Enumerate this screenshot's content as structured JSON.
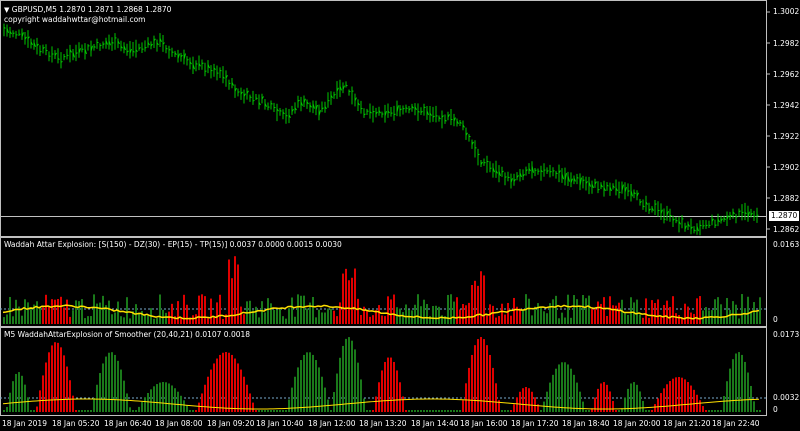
{
  "header": {
    "symbol_line": "GBPUSD,M5  1.2870 1.2871 1.2868 1.2870",
    "copyright": "copyright waddahwttar@hotmail.com"
  },
  "main_axis": {
    "labels": [
      "1.3002",
      "1.2982",
      "1.2962",
      "1.2942",
      "1.2922",
      "1.2902",
      "1.2882",
      "1.2862"
    ],
    "current_price": "1.2870"
  },
  "indicator1": {
    "title": "Waddah Attar Explosion: [S(150) - DZ(30) - EP(15) - TP(15)] 0.0037 0.0000 0.0015 0.0030",
    "axis_top": "0.0163",
    "axis_zero": "0"
  },
  "indicator2": {
    "title": "M5  WaddahAttarExplosion of Smoother (20,40,21) 0.0107 0.0018",
    "axis_top": "0.0173",
    "axis_mid": "0.0032",
    "axis_zero": "0"
  },
  "time_axis": [
    "18 Jan 2019",
    "18 Jan 05:20",
    "18 Jan 06:40",
    "18 Jan 08:00",
    "18 Jan 09:20",
    "18 Jan 10:40",
    "18 Jan 12:00",
    "18 Jan 13:20",
    "18 Jan 14:40",
    "18 Jan 16:00",
    "18 Jan 17:20",
    "18 Jan 18:40",
    "18 Jan 20:00",
    "18 Jan 21:20",
    "18 Jan 22:40"
  ],
  "colors": {
    "up_bar": "#00c800",
    "histo_green": "#1a7a1a",
    "histo_red": "#e00000",
    "signal": "#ffe000",
    "grid": "#c0c0c0"
  }
}
